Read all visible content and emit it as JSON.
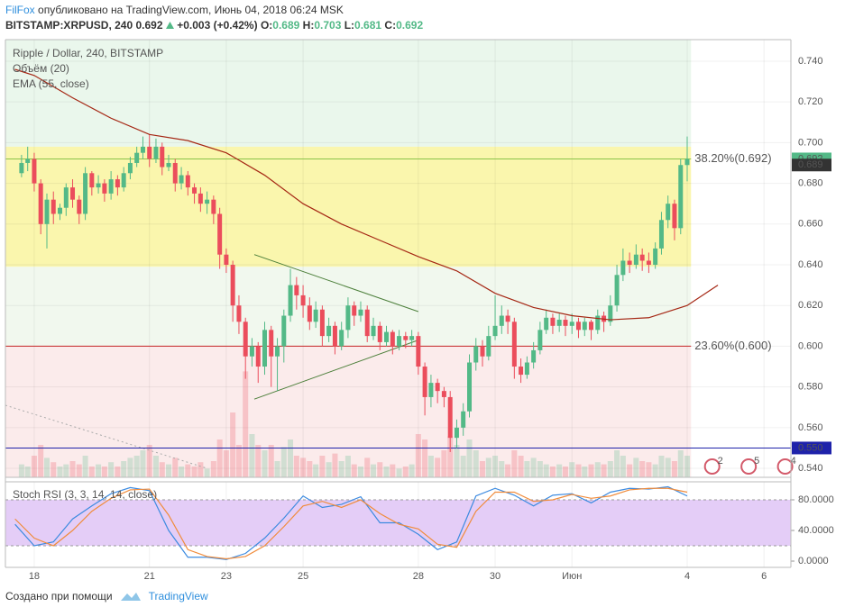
{
  "header": {
    "author": "FilFox",
    "published": "опубликовано на TradingView.com, Июнь 04, 2018 06:24 MSK",
    "symbol": "BITSTAMP:XRPUSD, 240",
    "price": 0.692,
    "change": "+0.003 (+0.42%)",
    "o_label": "O:",
    "o": 0.689,
    "h_label": "H:",
    "h": 0.703,
    "l_label": "L:",
    "l": 0.681,
    "c_label": "C:",
    "c": 0.692
  },
  "footer": {
    "text": "Создано при помощи",
    "brand": "TradingView"
  },
  "chart_data": {
    "type": "candlestick",
    "title": "Ripple / Dollar, 240, BITSTAMP",
    "up_color": "#53b987",
    "down_color": "#eb4d5c",
    "x": [
      17.67,
      17.83,
      18,
      18.17,
      18.33,
      18.5,
      18.67,
      18.83,
      19,
      19.17,
      19.33,
      19.5,
      19.67,
      19.83,
      20,
      20.17,
      20.33,
      20.5,
      20.67,
      20.83,
      21,
      21.17,
      21.33,
      21.5,
      21.67,
      21.83,
      22,
      22.17,
      22.33,
      22.5,
      22.67,
      22.83,
      23,
      23.17,
      23.33,
      23.5,
      23.67,
      23.83,
      24,
      24.17,
      24.33,
      24.5,
      24.67,
      24.83,
      25,
      25.17,
      25.33,
      25.5,
      25.67,
      25.83,
      26,
      26.17,
      26.33,
      26.5,
      26.67,
      26.83,
      27,
      27.17,
      27.33,
      27.5,
      27.67,
      27.83,
      28,
      28.17,
      28.33,
      28.5,
      28.67,
      28.83,
      29,
      29.17,
      29.33,
      29.5,
      29.67,
      29.83,
      30,
      30.17,
      30.33,
      30.5,
      30.67,
      30.83,
      31,
      31.17,
      31.33,
      31.5,
      31.67,
      31.83,
      32,
      32.17,
      32.33,
      32.5,
      32.67,
      32.83,
      33,
      33.17,
      33.33,
      33.5,
      33.67,
      33.83,
      34,
      34.17,
      34.33,
      34.5,
      34.67,
      34.83,
      35
    ],
    "open": [
      0.685,
      0.69,
      0.692,
      0.68,
      0.66,
      0.672,
      0.665,
      0.668,
      0.678,
      0.672,
      0.665,
      0.685,
      0.678,
      0.68,
      0.675,
      0.682,
      0.678,
      0.685,
      0.69,
      0.695,
      0.698,
      0.692,
      0.698,
      0.688,
      0.69,
      0.68,
      0.684,
      0.678,
      0.675,
      0.67,
      0.672,
      0.665,
      0.645,
      0.64,
      0.62,
      0.612,
      0.595,
      0.6,
      0.59,
      0.608,
      0.595,
      0.6,
      0.615,
      0.63,
      0.625,
      0.62,
      0.612,
      0.618,
      0.605,
      0.61,
      0.6,
      0.608,
      0.62,
      0.615,
      0.618,
      0.605,
      0.61,
      0.602,
      0.607,
      0.6,
      0.605,
      0.603,
      0.605,
      0.59,
      0.575,
      0.582,
      0.578,
      0.575,
      0.555,
      0.56,
      0.568,
      0.592,
      0.6,
      0.595,
      0.605,
      0.61,
      0.615,
      0.612,
      0.59,
      0.586,
      0.592,
      0.598,
      0.608,
      0.614,
      0.61,
      0.613,
      0.61,
      0.612,
      0.608,
      0.612,
      0.608,
      0.615,
      0.612,
      0.62,
      0.635,
      0.642,
      0.64,
      0.645,
      0.642,
      0.64,
      0.648,
      0.662,
      0.67,
      0.658,
      0.689
    ],
    "high": [
      0.694,
      0.698,
      0.695,
      0.682,
      0.675,
      0.676,
      0.67,
      0.68,
      0.682,
      0.674,
      0.688,
      0.686,
      0.684,
      0.682,
      0.686,
      0.684,
      0.688,
      0.693,
      0.698,
      0.703,
      0.704,
      0.702,
      0.7,
      0.694,
      0.692,
      0.688,
      0.686,
      0.68,
      0.678,
      0.676,
      0.674,
      0.668,
      0.648,
      0.642,
      0.625,
      0.614,
      0.604,
      0.602,
      0.612,
      0.61,
      0.604,
      0.618,
      0.638,
      0.634,
      0.63,
      0.624,
      0.622,
      0.62,
      0.614,
      0.612,
      0.612,
      0.624,
      0.622,
      0.622,
      0.62,
      0.614,
      0.612,
      0.61,
      0.608,
      0.608,
      0.607,
      0.608,
      0.607,
      0.592,
      0.586,
      0.584,
      0.58,
      0.578,
      0.564,
      0.572,
      0.596,
      0.604,
      0.603,
      0.61,
      0.625,
      0.62,
      0.618,
      0.614,
      0.594,
      0.595,
      0.602,
      0.612,
      0.618,
      0.616,
      0.616,
      0.615,
      0.616,
      0.614,
      0.614,
      0.613,
      0.618,
      0.617,
      0.625,
      0.64,
      0.648,
      0.646,
      0.65,
      0.648,
      0.646,
      0.651,
      0.666,
      0.674,
      0.672,
      0.692,
      0.703
    ],
    "low": [
      0.683,
      0.686,
      0.676,
      0.655,
      0.648,
      0.66,
      0.662,
      0.664,
      0.668,
      0.66,
      0.662,
      0.674,
      0.675,
      0.671,
      0.672,
      0.674,
      0.676,
      0.682,
      0.688,
      0.692,
      0.688,
      0.69,
      0.684,
      0.686,
      0.676,
      0.677,
      0.674,
      0.67,
      0.666,
      0.665,
      0.66,
      0.638,
      0.636,
      0.612,
      0.606,
      0.584,
      0.59,
      0.582,
      0.586,
      0.58,
      0.578,
      0.592,
      0.612,
      0.618,
      0.614,
      0.608,
      0.609,
      0.6,
      0.602,
      0.596,
      0.598,
      0.604,
      0.61,
      0.612,
      0.602,
      0.603,
      0.598,
      0.6,
      0.596,
      0.598,
      0.599,
      0.6,
      0.586,
      0.566,
      0.57,
      0.572,
      0.57,
      0.548,
      0.55,
      0.556,
      0.565,
      0.588,
      0.59,
      0.593,
      0.603,
      0.606,
      0.606,
      0.584,
      0.582,
      0.584,
      0.589,
      0.596,
      0.606,
      0.606,
      0.607,
      0.605,
      0.606,
      0.604,
      0.605,
      0.603,
      0.606,
      0.607,
      0.61,
      0.617,
      0.632,
      0.636,
      0.638,
      0.637,
      0.636,
      0.638,
      0.645,
      0.658,
      0.652,
      0.655,
      0.681
    ],
    "close": [
      0.69,
      0.692,
      0.68,
      0.66,
      0.672,
      0.665,
      0.668,
      0.678,
      0.672,
      0.665,
      0.685,
      0.678,
      0.68,
      0.675,
      0.682,
      0.678,
      0.685,
      0.69,
      0.695,
      0.698,
      0.692,
      0.698,
      0.688,
      0.69,
      0.68,
      0.684,
      0.678,
      0.675,
      0.67,
      0.672,
      0.665,
      0.645,
      0.64,
      0.62,
      0.612,
      0.595,
      0.6,
      0.59,
      0.608,
      0.595,
      0.6,
      0.615,
      0.63,
      0.625,
      0.62,
      0.612,
      0.618,
      0.605,
      0.61,
      0.6,
      0.608,
      0.62,
      0.615,
      0.618,
      0.605,
      0.61,
      0.602,
      0.607,
      0.6,
      0.605,
      0.603,
      0.605,
      0.59,
      0.575,
      0.582,
      0.578,
      0.575,
      0.555,
      0.56,
      0.568,
      0.592,
      0.6,
      0.595,
      0.605,
      0.61,
      0.615,
      0.612,
      0.59,
      0.586,
      0.592,
      0.598,
      0.608,
      0.614,
      0.61,
      0.613,
      0.61,
      0.612,
      0.608,
      0.612,
      0.608,
      0.615,
      0.612,
      0.62,
      0.635,
      0.642,
      0.64,
      0.645,
      0.642,
      0.64,
      0.648,
      0.662,
      0.67,
      0.658,
      0.689,
      0.692
    ],
    "volume_name": "Объём (20)",
    "volume_lim": [
      0,
      100
    ],
    "volume": [
      12,
      10,
      20,
      30,
      18,
      14,
      10,
      12,
      15,
      12,
      20,
      10,
      12,
      10,
      14,
      10,
      15,
      18,
      20,
      25,
      30,
      20,
      14,
      12,
      18,
      10,
      12,
      10,
      14,
      8,
      15,
      35,
      25,
      60,
      30,
      98,
      40,
      30,
      25,
      30,
      15,
      28,
      35,
      20,
      18,
      15,
      12,
      20,
      14,
      22,
      15,
      20,
      12,
      10,
      18,
      12,
      14,
      10,
      12,
      8,
      10,
      12,
      40,
      35,
      20,
      18,
      25,
      38,
      30,
      20,
      35,
      25,
      15,
      18,
      20,
      15,
      12,
      25,
      20,
      15,
      18,
      15,
      12,
      10,
      12,
      10,
      14,
      12,
      10,
      12,
      14,
      12,
      15,
      25,
      20,
      12,
      18,
      15,
      14,
      12,
      20,
      18,
      15,
      25,
      20
    ],
    "ema": {
      "name": "EMA (55, close)",
      "color": "#a52714",
      "x": [
        17.5,
        18,
        19,
        20,
        21,
        22,
        23,
        24,
        25,
        26,
        27,
        28,
        29,
        30,
        31,
        32,
        33,
        34,
        35,
        35.8
      ],
      "values": [
        0.736,
        0.733,
        0.722,
        0.712,
        0.704,
        0.701,
        0.695,
        0.684,
        0.67,
        0.66,
        0.652,
        0.644,
        0.637,
        0.626,
        0.619,
        0.615,
        0.613,
        0.614,
        0.62,
        0.63
      ]
    },
    "xlim": [
      17.25,
      37.7
    ],
    "xticks": [
      18,
      21,
      23,
      25,
      28,
      30,
      {
        "value": 32,
        "label": "Июн"
      },
      {
        "value": 35,
        "label": "4"
      },
      {
        "value": 37,
        "label": "6"
      }
    ],
    "ylim": [
      0.5356,
      0.7506
    ],
    "yticks": [
      {
        "value": 0.54,
        "label": "0.540"
      },
      {
        "value": 0.56,
        "label": "0.560"
      },
      {
        "value": 0.58,
        "label": "0.580"
      },
      {
        "value": 0.6,
        "label": "0.600"
      },
      {
        "value": 0.62,
        "label": "0.620"
      },
      {
        "value": 0.64,
        "label": "0.640"
      },
      {
        "value": 0.66,
        "label": "0.660"
      },
      {
        "value": 0.68,
        "label": "0.680"
      },
      {
        "value": 0.7,
        "label": "0.700"
      },
      {
        "value": 0.72,
        "label": "0.720"
      },
      {
        "value": 0.74,
        "label": "0.740"
      }
    ],
    "grid": true,
    "zones": {
      "x_end": 35.1,
      "bands": [
        {
          "from": 0.698,
          "to": 0.7506,
          "color": "#eaf7ec"
        },
        {
          "from": 0.639,
          "to": 0.698,
          "color": "#faf6ad"
        },
        {
          "from": 0.6,
          "to": 0.639,
          "color": "#f1f8ee"
        },
        {
          "from": 0.5356,
          "to": 0.6,
          "color": "#fbebeb"
        }
      ]
    },
    "fib_levels": [
      {
        "value": 0.692,
        "label": "38.20%(0.692)",
        "color": "#8bc34a"
      },
      {
        "value": 0.6,
        "label": "23.60%(0.600)",
        "color": "#c62828"
      }
    ],
    "trendlines": [
      {
        "x": [
          23.73,
          28
        ],
        "values": [
          0.645,
          0.617
        ],
        "color": "#4c7f3a",
        "dash": false
      },
      {
        "x": [
          23.73,
          28
        ],
        "values": [
          0.574,
          0.603
        ],
        "color": "#4c7f3a",
        "dash": false
      },
      {
        "x": [
          17.25,
          22.5
        ],
        "values": [
          0.571,
          0.54
        ],
        "color": "#aaaaaa",
        "dash": true
      }
    ],
    "hline": {
      "value": 0.55,
      "label": "0.550",
      "color": "#1e22aa"
    },
    "price_tags": [
      {
        "value": 0.692,
        "color": "#53b987"
      },
      {
        "value": 0.689,
        "color": "#333333"
      }
    ],
    "events": [
      {
        "x": 35.65,
        "count": 2
      },
      {
        "x": 36.6,
        "count": 5
      },
      {
        "x": 37.55,
        "count": 4
      }
    ],
    "stoch_rsi": {
      "name": "Stoch RSI (3, 3, 14, 14, close)",
      "ylim": [
        -8.2,
        103.5
      ],
      "band": [
        20,
        80
      ],
      "band_color": "#e4cdf7",
      "yticks": [
        {
          "value": 0,
          "label": "0.0000"
        },
        {
          "value": 40,
          "label": "40.0000"
        },
        {
          "value": 80,
          "label": "80.0000"
        }
      ],
      "x": [
        17.5,
        18,
        18.5,
        19,
        19.5,
        20,
        20.5,
        21,
        21.5,
        22,
        22.5,
        23,
        23.5,
        24,
        24.5,
        25,
        25.5,
        26,
        26.5,
        27,
        27.5,
        28,
        28.5,
        29,
        29.5,
        30,
        30.5,
        31,
        31.5,
        32,
        32.5,
        33,
        33.5,
        34,
        34.5,
        35
      ],
      "series": [
        {
          "color": "#3d8be0",
          "values": [
            48,
            20,
            25,
            55,
            72,
            88,
            96,
            92,
            40,
            5,
            5,
            2,
            10,
            30,
            56,
            85,
            70,
            74,
            84,
            50,
            50,
            35,
            15,
            25,
            85,
            95,
            86,
            72,
            86,
            88,
            76,
            90,
            95,
            94,
            97,
            85
          ]
        },
        {
          "color": "#f08c3c",
          "values": [
            55,
            30,
            20,
            40,
            65,
            82,
            93,
            94,
            60,
            15,
            6,
            3,
            6,
            20,
            45,
            72,
            78,
            70,
            80,
            62,
            48,
            42,
            22,
            18,
            65,
            90,
            90,
            78,
            80,
            87,
            82,
            85,
            93,
            95,
            95,
            90
          ]
        }
      ]
    }
  }
}
